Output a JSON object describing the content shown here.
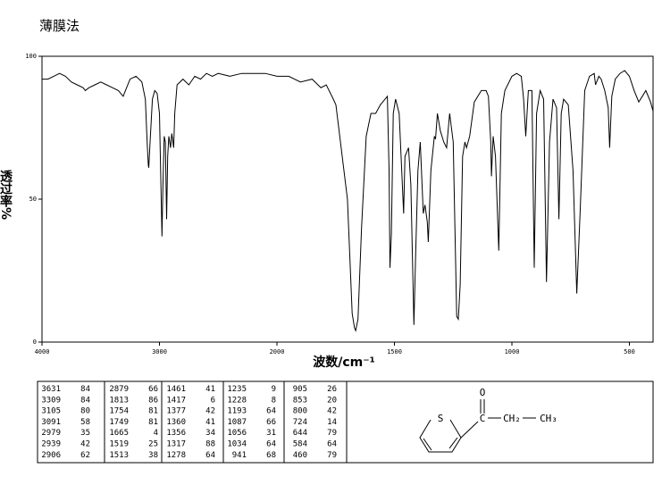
{
  "title": "薄膜法",
  "chart_data": {
    "type": "line",
    "color": "#000000",
    "ylabel": "透过率%",
    "xlabel": "波数/cm⁻¹",
    "xlim": [
      4000,
      400
    ],
    "xticks": [
      4000,
      3000,
      2000,
      1500,
      1000,
      500
    ],
    "ylim": [
      0,
      100
    ],
    "yticks": [
      0,
      50,
      100
    ],
    "x": [
      4000,
      3950,
      3900,
      3850,
      3800,
      3750,
      3700,
      3650,
      3631,
      3600,
      3550,
      3500,
      3450,
      3400,
      3350,
      3309,
      3280,
      3250,
      3200,
      3150,
      3120,
      3105,
      3095,
      3091,
      3080,
      3060,
      3040,
      3020,
      3000,
      2990,
      2979,
      2970,
      2960,
      2950,
      2939,
      2930,
      2920,
      2906,
      2895,
      2879,
      2870,
      2850,
      2800,
      2750,
      2700,
      2650,
      2600,
      2550,
      2500,
      2400,
      2300,
      2200,
      2100,
      2000,
      1950,
      1900,
      1850,
      1813,
      1790,
      1760,
      1749,
      1700,
      1680,
      1670,
      1665,
      1655,
      1640,
      1620,
      1600,
      1580,
      1560,
      1530,
      1523,
      1519,
      1513,
      1505,
      1495,
      1480,
      1461,
      1455,
      1440,
      1430,
      1417,
      1410,
      1400,
      1390,
      1377,
      1370,
      1360,
      1356,
      1345,
      1330,
      1325,
      1317,
      1305,
      1290,
      1278,
      1265,
      1250,
      1235,
      1228,
      1220,
      1210,
      1200,
      1193,
      1180,
      1160,
      1130,
      1110,
      1100,
      1090,
      1087,
      1080,
      1070,
      1056,
      1045,
      1030,
      1000,
      980,
      960,
      950,
      941,
      930,
      915,
      905,
      895,
      880,
      865,
      853,
      840,
      825,
      810,
      800,
      790,
      780,
      760,
      740,
      724,
      710,
      690,
      670,
      650,
      644,
      630,
      620,
      605,
      590,
      584,
      575,
      560,
      540,
      520,
      500,
      480,
      465,
      460,
      445,
      430,
      410,
      400
    ],
    "values": [
      92,
      92,
      93,
      94,
      93,
      91,
      90,
      89,
      88,
      89,
      90,
      91,
      90,
      89,
      88,
      86,
      89,
      92,
      93,
      91,
      85,
      70,
      62,
      61,
      70,
      85,
      88,
      87,
      80,
      60,
      37,
      55,
      72,
      70,
      43,
      65,
      72,
      68,
      73,
      68,
      80,
      90,
      92,
      90,
      93,
      92,
      94,
      93,
      94,
      93,
      94,
      94,
      94,
      93,
      93,
      91,
      92,
      89,
      90,
      85,
      83,
      50,
      10,
      5,
      4,
      8,
      40,
      72,
      80,
      80,
      83,
      86,
      60,
      26,
      38,
      80,
      85,
      80,
      45,
      65,
      68,
      55,
      6,
      30,
      60,
      70,
      45,
      48,
      42,
      35,
      60,
      72,
      71,
      80,
      74,
      70,
      68,
      80,
      70,
      9,
      8,
      20,
      65,
      70,
      68,
      72,
      84,
      88,
      88,
      86,
      70,
      58,
      72,
      65,
      32,
      80,
      88,
      93,
      94,
      93,
      85,
      72,
      88,
      88,
      26,
      80,
      88,
      85,
      21,
      70,
      85,
      82,
      43,
      80,
      85,
      83,
      60,
      17,
      45,
      88,
      93,
      94,
      90,
      93,
      92,
      88,
      82,
      68,
      86,
      92,
      94,
      95,
      93,
      88,
      85,
      84,
      86,
      88,
      84,
      81
    ]
  },
  "peak_table": [
    [
      [
        3631,
        84
      ],
      [
        3309,
        84
      ],
      [
        3105,
        80
      ],
      [
        3091,
        58
      ],
      [
        2979,
        35
      ],
      [
        2939,
        42
      ],
      [
        2906,
        62
      ]
    ],
    [
      [
        2879,
        66
      ],
      [
        1813,
        86
      ],
      [
        1754,
        81
      ],
      [
        1749,
        81
      ],
      [
        1665,
        4
      ],
      [
        1519,
        25
      ],
      [
        1513,
        38
      ]
    ],
    [
      [
        1461,
        41
      ],
      [
        1417,
        6
      ],
      [
        1377,
        42
      ],
      [
        1360,
        41
      ],
      [
        1356,
        34
      ],
      [
        1317,
        88
      ],
      [
        1278,
        64
      ]
    ],
    [
      [
        1235,
        9
      ],
      [
        1228,
        8
      ],
      [
        1193,
        64
      ],
      [
        1087,
        66
      ],
      [
        1056,
        31
      ],
      [
        1034,
        64
      ],
      [
        941,
        68
      ]
    ],
    [
      [
        905,
        26
      ],
      [
        853,
        20
      ],
      [
        800,
        42
      ],
      [
        724,
        14
      ],
      [
        644,
        79
      ],
      [
        584,
        64
      ],
      [
        460,
        79
      ]
    ]
  ],
  "structure": {
    "atoms": [
      "O",
      "S",
      "C",
      "CH₂",
      "CH₃"
    ]
  }
}
